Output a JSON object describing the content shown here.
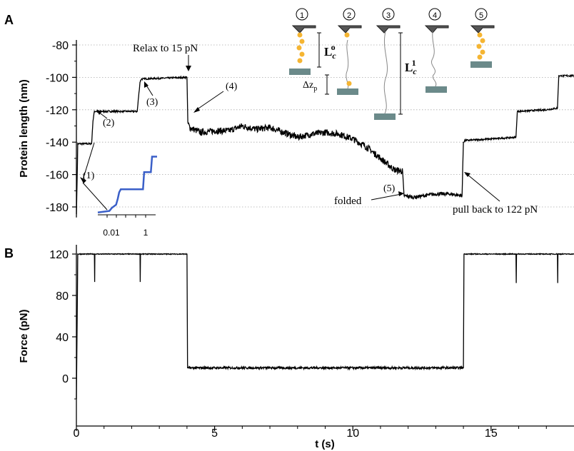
{
  "figure": {
    "panel_a_label": "A",
    "panel_b_label": "B"
  },
  "chart_data": [
    {
      "type": "line",
      "panel": "A",
      "title": "",
      "xlabel": "",
      "ylabel": "Protein length (nm)",
      "xlim": [
        0,
        18
      ],
      "ylim": [
        -186,
        -78
      ],
      "yticks": [
        -80,
        -100,
        -120,
        -140,
        -160,
        -180
      ],
      "ytick_labels": [
        "-80",
        "-100",
        "-120",
        "-140",
        "-160",
        "-180"
      ],
      "grid": "horizontal dotted",
      "series": [
        {
          "x": [
            0,
            0.05,
            0.12,
            0.55,
            0.6,
            0.65,
            2.2,
            2.3,
            2.35,
            4.0,
            4.03,
            4.1,
            4.5,
            5.0,
            5.5,
            6.0,
            6.5,
            7.0,
            7.5,
            8.0,
            8.5,
            9.0,
            9.5,
            10.0,
            10.5,
            11.0,
            11.5,
            11.8,
            11.85,
            12.2,
            12.6,
            13.0,
            13.5,
            13.95,
            14.0,
            14.05,
            15.0,
            15.9,
            15.95,
            17.0,
            17.4,
            17.45,
            18.0
          ],
          "y": [
            -186,
            -141,
            -141,
            -141,
            -127,
            -121,
            -121,
            -103,
            -101,
            -100,
            -128,
            -131,
            -134,
            -133,
            -133,
            -130,
            -132,
            -131,
            -134,
            -137,
            -135,
            -134,
            -135,
            -138,
            -143,
            -150,
            -157,
            -158,
            -173,
            -174,
            -173,
            -172,
            -172,
            -173,
            -140,
            -139,
            -138,
            -137,
            -121,
            -120,
            -119,
            -99,
            -99
          ]
        }
      ],
      "annotations": [
        "Relax to 15 pN",
        "(1)",
        "(2)",
        "(3)",
        "(4)",
        "(5)",
        "folded",
        "pull back to 122 pN"
      ],
      "inset": {
        "type": "line",
        "xscale": "log",
        "xtick_labels": [
          "0.01",
          "1"
        ],
        "color": "#3a5fc8",
        "x": [
          0.0003,
          0.002,
          0.003,
          0.006,
          0.008,
          0.01,
          0.013,
          0.02,
          0.1,
          0.5,
          0.6,
          1,
          1.8,
          2.2,
          5
        ],
        "y": [
          -185,
          -184,
          -182,
          -180,
          -176,
          -172,
          -170,
          -170,
          -170,
          -170,
          -159,
          -159,
          -159,
          -149,
          -149
        ]
      },
      "schematic": {
        "state_labels": [
          "①",
          "②",
          "③",
          "④",
          "⑤"
        ],
        "lc0_label": "L",
        "lc0_sub": "c",
        "lc0_sup": "o",
        "lc1_label": "L",
        "lc1_sub": "c",
        "lc1_sup": "1",
        "dz_label": "Δz",
        "dz_sub": "p",
        "protein_color": "#f5b532",
        "substrate_color": "#6b8a8a"
      }
    },
    {
      "type": "line",
      "panel": "B",
      "title": "",
      "xlabel": "t (s)",
      "ylabel": "Force (pN)",
      "xlim": [
        0,
        18
      ],
      "ylim": [
        -30,
        128
      ],
      "xticks": [
        0,
        5,
        10,
        15
      ],
      "xtick_labels": [
        "0",
        "5",
        "10",
        "15"
      ],
      "yticks": [
        0,
        40,
        80,
        120
      ],
      "ytick_labels": [
        "0",
        "40",
        "80",
        "120"
      ],
      "series": [
        {
          "x": [
            0,
            0.05,
            0.1,
            0.65,
            0.66,
            0.67,
            2.3,
            2.31,
            2.32,
            4.0,
            4.02,
            4.05,
            14.0,
            14.02,
            14.05,
            15.9,
            15.91,
            15.92,
            17.4,
            17.41,
            17.42,
            18.0
          ],
          "y": [
            -20,
            120,
            120,
            120,
            93,
            120,
            120,
            93,
            120,
            120,
            10,
            10,
            10,
            120,
            120,
            120,
            92,
            120,
            120,
            92,
            120,
            120
          ]
        }
      ]
    }
  ]
}
